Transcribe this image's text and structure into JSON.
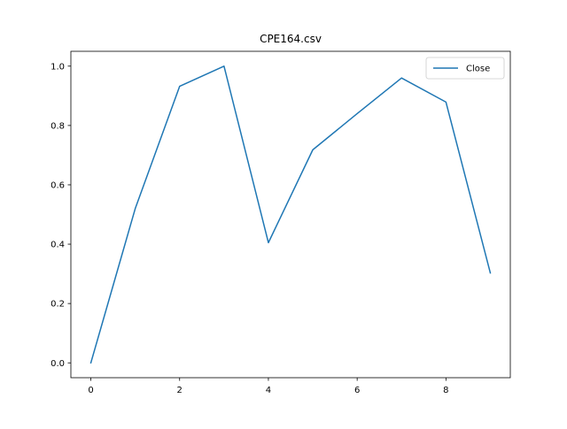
{
  "chart_data": {
    "type": "line",
    "title": "CPE164.csv",
    "xlabel": "",
    "ylabel": "",
    "x": [
      0,
      1,
      2,
      3,
      4,
      5,
      6,
      7,
      8,
      9
    ],
    "series": [
      {
        "name": "Close",
        "color": "#1f77b4",
        "values": [
          0.0,
          0.52,
          0.932,
          1.0,
          0.405,
          0.718,
          0.84,
          0.96,
          0.879,
          0.303
        ]
      }
    ],
    "xlim": [
      -0.45,
      9.45
    ],
    "ylim": [
      -0.05,
      1.05
    ],
    "xticks": [
      0,
      2,
      4,
      6,
      8
    ],
    "xtick_labels": [
      "0",
      "2",
      "4",
      "6",
      "8"
    ],
    "yticks": [
      0.0,
      0.2,
      0.4,
      0.6,
      0.8,
      1.0
    ],
    "ytick_labels": [
      "0.0",
      "0.2",
      "0.4",
      "0.6",
      "0.8",
      "1.0"
    ],
    "grid": false,
    "legend_position": "top-right"
  }
}
